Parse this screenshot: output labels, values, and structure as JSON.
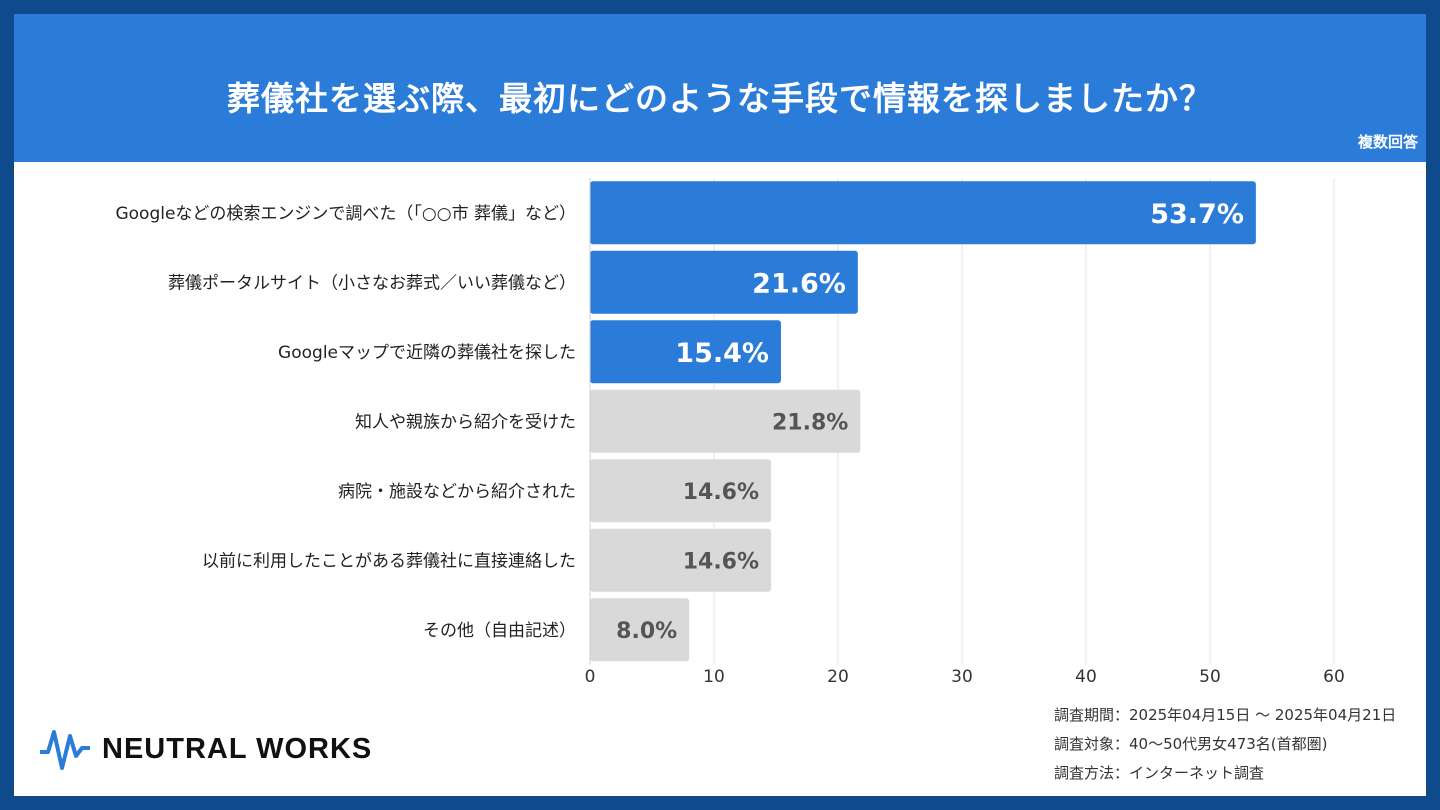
{
  "title": "葬儀社を選ぶ際、最初にどのような手段で情報を探しましたか？",
  "note": "複数回答",
  "colors": {
    "frame": "#0e4a8c",
    "header": "#2b7bd8",
    "highlight": "#2b7bd8",
    "other": "#d9d9d9",
    "highlight_label": "#ffffff",
    "other_label": "#555555"
  },
  "chart_data": {
    "type": "bar",
    "orientation": "horizontal",
    "categories": [
      "Googleなどの検索エンジンで調べた（「○○市 葬儀」など）",
      "葬儀ポータルサイト（小さなお葬式／いい葬儀など）",
      "Googleマップで近隣の葬儀社を探した",
      "知人や親族から紹介を受けた",
      "病院・施設などから紹介された",
      "以前に利用したことがある葬儀社に直接連絡した",
      "その他（自由記述）"
    ],
    "values": [
      53.7,
      21.6,
      15.4,
      21.8,
      14.6,
      14.6,
      8.0
    ],
    "labels": [
      "53.7%",
      "21.6%",
      "15.4%",
      "21.8%",
      "14.6%",
      "14.6%",
      "8.0%"
    ],
    "highlighted": [
      true,
      true,
      true,
      false,
      false,
      false,
      false
    ],
    "xlim": [
      0,
      60
    ],
    "xticks": [
      0,
      10,
      20,
      30,
      40,
      50,
      60
    ],
    "grid": true
  },
  "survey": {
    "period": "調査期間：2025年04月15日 〜 2025年04月21日",
    "target": "調査対象：40〜50代男女473名(首都圏)",
    "method": "調査方法：インターネット調査"
  },
  "logo": {
    "text": "NEUTRAL WORKS",
    "icon": "waveform-icon"
  }
}
